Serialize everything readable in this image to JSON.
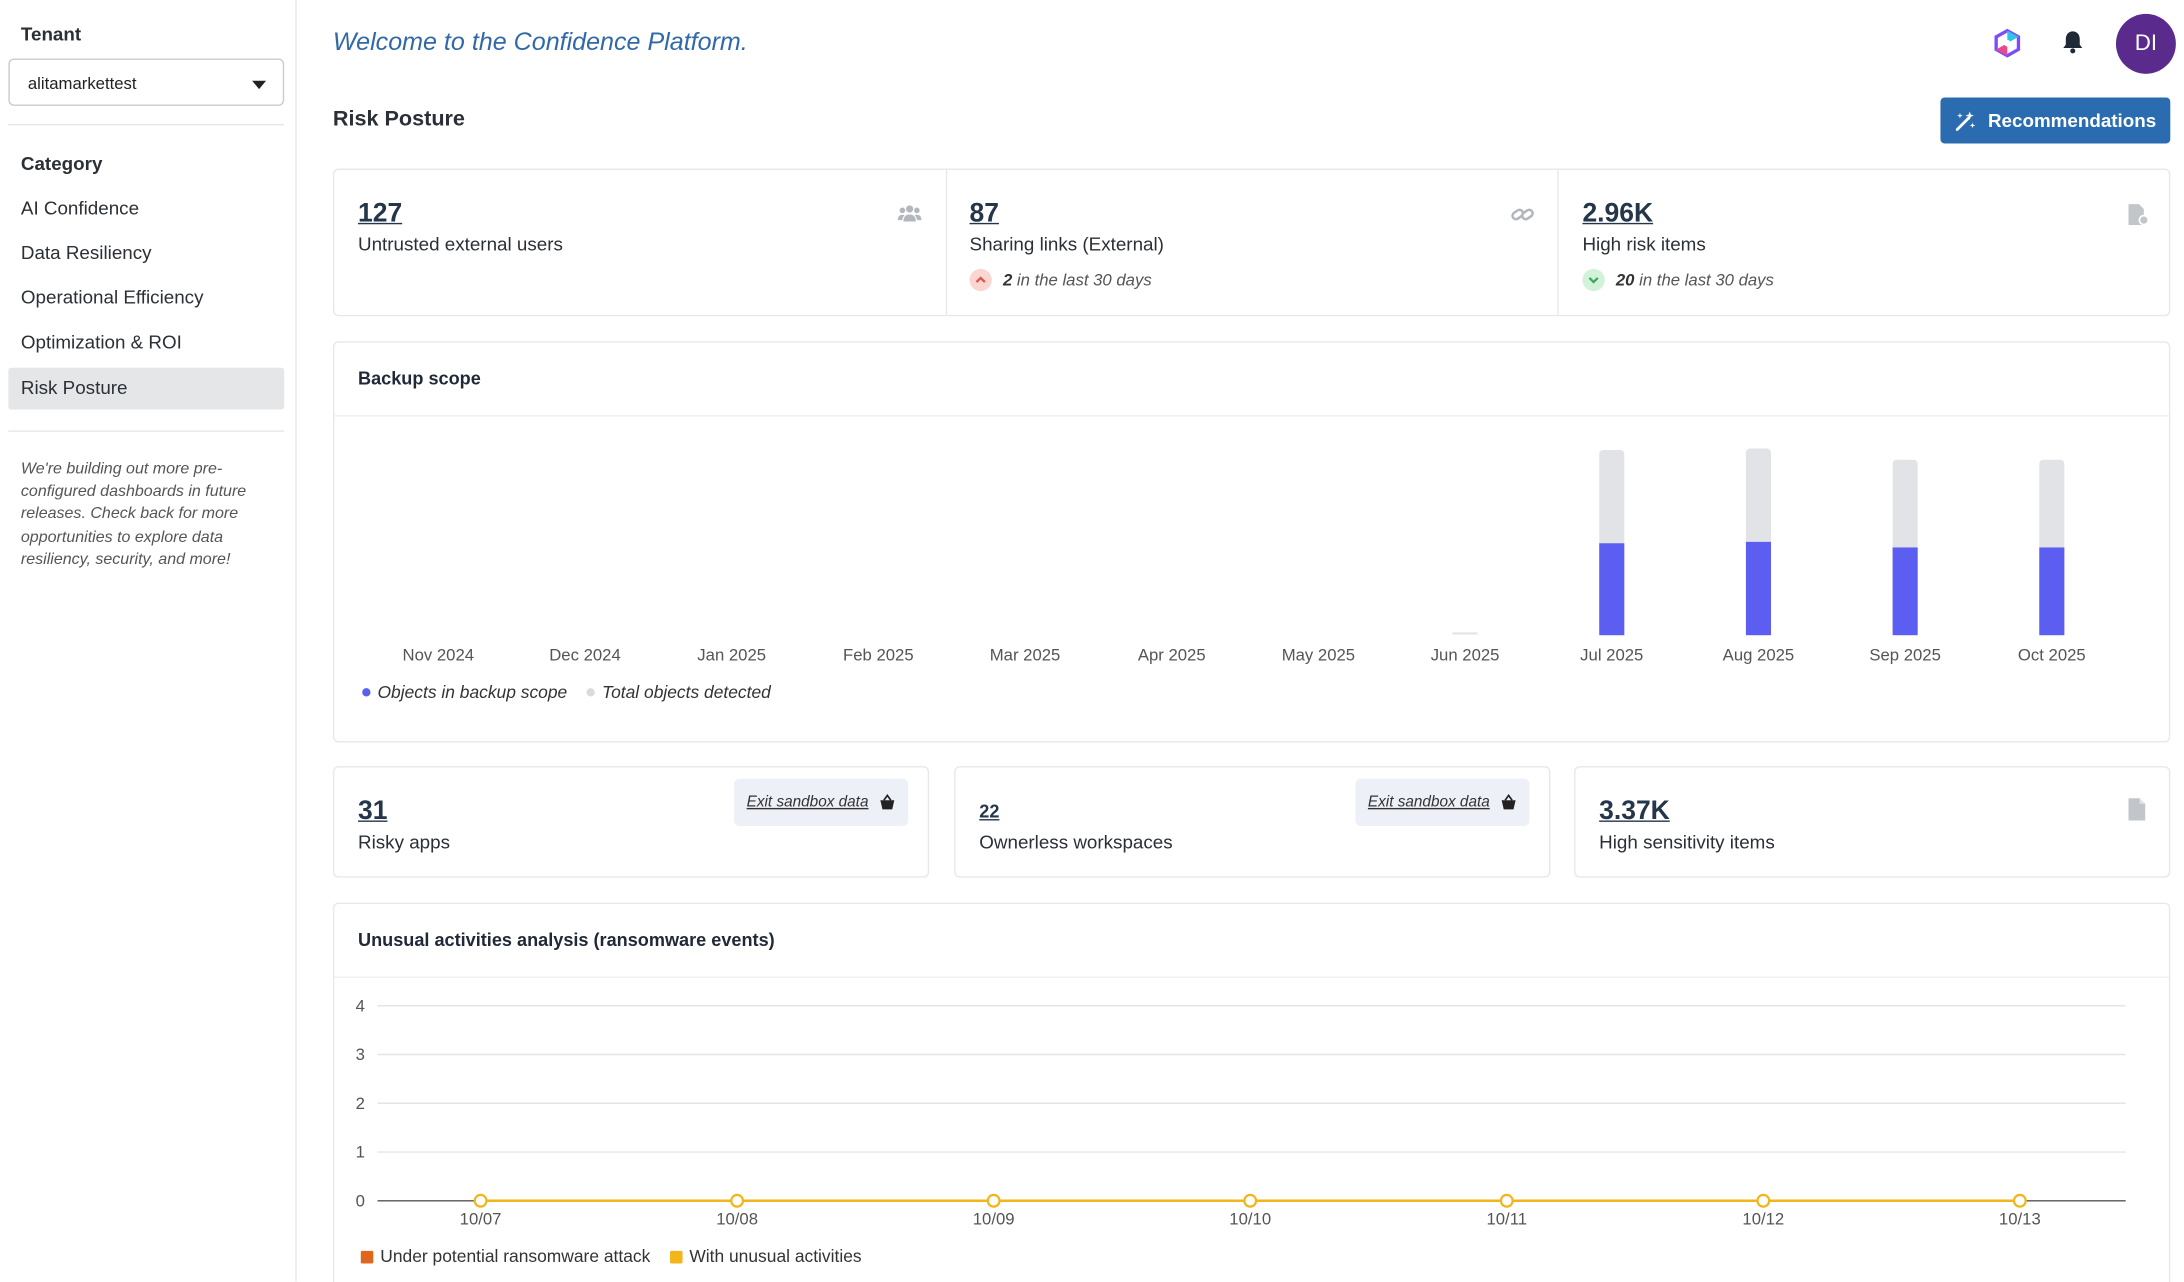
{
  "sidebar": {
    "tenant_label": "Tenant",
    "tenant_value": "alitamarkettest",
    "category_label": "Category",
    "items": [
      {
        "label": "AI Confidence",
        "active": false
      },
      {
        "label": "Data Resiliency",
        "active": false
      },
      {
        "label": "Operational Efficiency",
        "active": false
      },
      {
        "label": "Optimization & ROI",
        "active": false
      },
      {
        "label": "Risk Posture",
        "active": true
      }
    ],
    "note": "We're building out more pre-configured dashboards in future releases. Check back for more opportunities to explore data resiliency, security, and more!"
  },
  "header": {
    "welcome": "Welcome to the Confidence Platform.",
    "avatar_initials": "DI",
    "icons": [
      "app-logo-icon",
      "bell-icon"
    ]
  },
  "page": {
    "title": "Risk Posture",
    "recommendations_label": "Recommendations"
  },
  "kpis_top": [
    {
      "value": "127",
      "label": "Untrusted external users",
      "icon": "users-icon"
    },
    {
      "value": "87",
      "label": "Sharing links (External)",
      "icon": "link-icon",
      "delta_value": "2",
      "delta_text": "in the last 30 days",
      "delta_direction": "up"
    },
    {
      "value": "2.96K",
      "label": "High risk items",
      "icon": "file-alert-icon",
      "delta_value": "20",
      "delta_text": "in the last 30 days",
      "delta_direction": "down"
    }
  ],
  "backup_scope": {
    "title": "Backup scope",
    "legend": [
      "Objects in backup scope",
      "Total objects detected"
    ]
  },
  "kpis_mid": [
    {
      "value": "31",
      "label": "Risky apps",
      "sandbox_label": "Exit sandbox data"
    },
    {
      "value": "22",
      "label": "Ownerless workspaces",
      "sandbox_label": "Exit sandbox data"
    },
    {
      "value": "3.37K",
      "label": "High sensitivity items",
      "icon": "file-icon"
    }
  ],
  "unusual": {
    "title": "Unusual activities analysis (ransomware events)",
    "legend": [
      "Under potential ransomware attack",
      "With unusual activities"
    ]
  },
  "colors": {
    "accent": "#2b6cb0",
    "in_scope": "#5b5ef0",
    "total": "#e2e3e6",
    "ransomware": "#e0661f",
    "unusual": "#f2b51c",
    "avatar": "#5a2a8c"
  },
  "chart_data": [
    {
      "type": "bar",
      "title": "Backup scope",
      "categories": [
        "Nov 2024",
        "Dec 2024",
        "Jan 2025",
        "Feb 2025",
        "Mar 2025",
        "Apr 2025",
        "May 2025",
        "Jun 2025",
        "Jul 2025",
        "Aug 2025",
        "Sep 2025",
        "Oct 2025"
      ],
      "series": [
        {
          "name": "Objects in backup scope",
          "values": [
            0,
            0,
            0,
            0,
            0,
            0,
            0,
            0,
            66,
            67,
            63,
            63
          ]
        },
        {
          "name": "Total objects detected",
          "values": [
            0,
            0,
            0,
            0,
            0,
            0,
            0,
            1,
            133,
            134,
            126,
            126
          ]
        }
      ],
      "stacked": false,
      "legend": "bottom-left",
      "grid": false
    },
    {
      "type": "line",
      "title": "Unusual activities analysis (ransomware events)",
      "x": [
        "10/07",
        "10/08",
        "10/09",
        "10/10",
        "10/11",
        "10/12",
        "10/13"
      ],
      "series": [
        {
          "name": "Under potential ransomware attack",
          "values": [
            0,
            0,
            0,
            0,
            0,
            0,
            0
          ]
        },
        {
          "name": "With unusual activities",
          "values": [
            0,
            0,
            0,
            0,
            0,
            0,
            0
          ]
        }
      ],
      "ylim": [
        0,
        4
      ],
      "yticks": [
        0,
        1,
        2,
        3,
        4
      ],
      "grid": true,
      "legend": "bottom-left"
    }
  ]
}
